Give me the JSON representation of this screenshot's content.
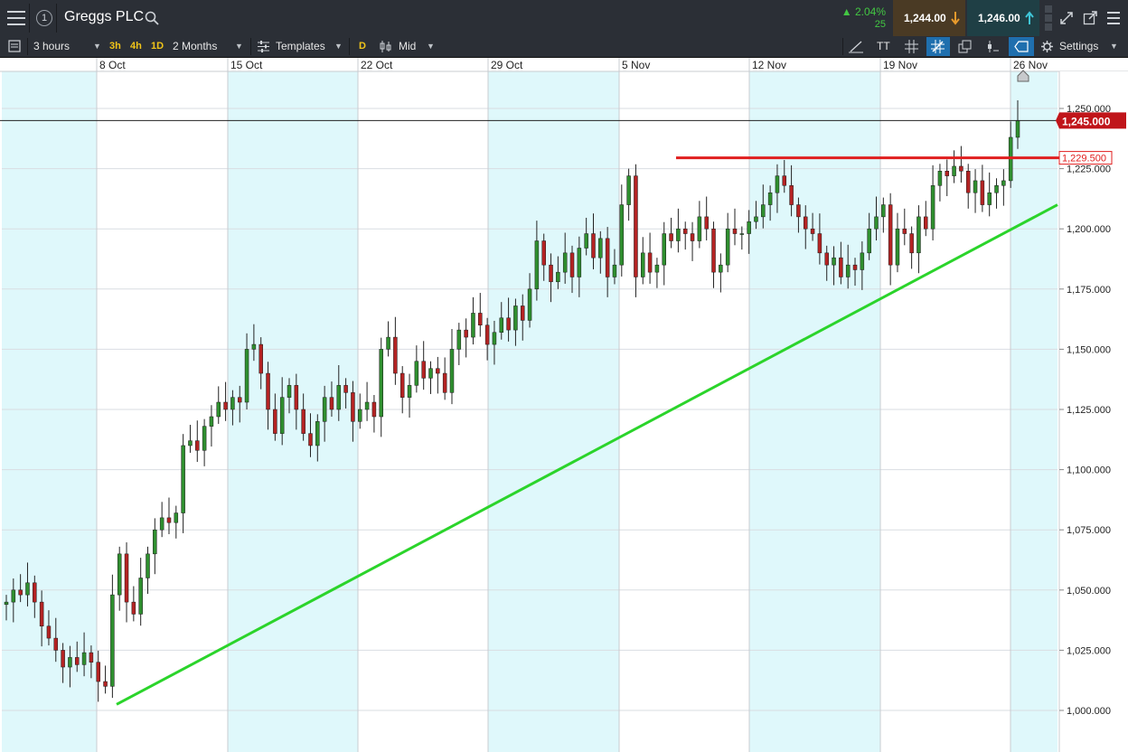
{
  "header": {
    "instrument": "Greggs PLC",
    "badge": "1",
    "change_pct": "▲ 2.04%",
    "change_pts": "25",
    "sell_price": "1,244.00",
    "buy_price": "1,246.00"
  },
  "toolbar": {
    "interval": "3 hours",
    "quick_3h": "3h",
    "quick_4h": "4h",
    "quick_1d": "1D",
    "range": "2 Months",
    "templates": "Templates",
    "d_badge": "D",
    "price_type": "Mid",
    "settings": "Settings",
    "text_tool": "TT"
  },
  "icons": [
    "menu-icon",
    "search-icon",
    "arrow-down-icon",
    "arrow-up-icon",
    "fullscreen-icon",
    "popout-icon",
    "templates-icon",
    "candle-icon",
    "line-tool-icon",
    "grid-icon",
    "crosshair-icon",
    "layers-icon",
    "gear-icon",
    "alert-icon"
  ],
  "colors": {
    "bull": "#2f8f2f",
    "bear": "#b42323",
    "resistance": "#e01e1e",
    "support": "#2bd42b",
    "shade": "#dff8fb",
    "price_tag": "#c0151a"
  },
  "chart_data": {
    "type": "candlestick",
    "x_labels": [
      "8 Oct",
      "15 Oct",
      "22 Oct",
      "29 Oct",
      "5 Nov",
      "12 Nov",
      "19 Nov",
      "26 Nov"
    ],
    "y_ticks": [
      "1,000.000",
      "1,025.000",
      "1,050.000",
      "1,075.000",
      "1,100.000",
      "1,125.000",
      "1,150.000",
      "1,175.000",
      "1,200.000",
      "1,225.000",
      "1,250.000"
    ],
    "ylim": [
      995,
      1262
    ],
    "current_price": 1245.0,
    "current_price_label": "1,245.000",
    "resistance_level": 1229.5,
    "resistance_label": "1,229.500",
    "support_line": {
      "from": [
        0,
        1002.5
      ],
      "to": [
        1,
        1210
      ]
    },
    "closes": [
      1045,
      1050,
      1048,
      1053,
      1045,
      1035,
      1030,
      1025,
      1018,
      1022,
      1019,
      1024,
      1020,
      1012,
      1010,
      1048,
      1065,
      1045,
      1040,
      1055,
      1065,
      1075,
      1080,
      1078,
      1082,
      1110,
      1112,
      1108,
      1118,
      1122,
      1128,
      1125,
      1130,
      1128,
      1150,
      1152,
      1140,
      1125,
      1115,
      1130,
      1135,
      1125,
      1115,
      1110,
      1120,
      1130,
      1125,
      1135,
      1132,
      1120,
      1125,
      1128,
      1122,
      1150,
      1155,
      1140,
      1130,
      1135,
      1145,
      1138,
      1142,
      1140,
      1132,
      1150,
      1158,
      1155,
      1165,
      1160,
      1152,
      1157,
      1163,
      1158,
      1168,
      1162,
      1175,
      1195,
      1185,
      1178,
      1182,
      1190,
      1180,
      1192,
      1198,
      1188,
      1196,
      1180,
      1185,
      1210,
      1222,
      1180,
      1190,
      1182,
      1185,
      1198,
      1195,
      1200,
      1198,
      1195,
      1205,
      1200,
      1182,
      1185,
      1200,
      1198,
      1198,
      1203,
      1205,
      1210,
      1215,
      1222,
      1218,
      1210,
      1205,
      1200,
      1198,
      1190,
      1185,
      1188,
      1180,
      1185,
      1183,
      1190,
      1200,
      1205,
      1210,
      1185,
      1200,
      1198,
      1190,
      1205,
      1200,
      1218,
      1224,
      1222,
      1226,
      1224,
      1215,
      1220,
      1210,
      1215,
      1218,
      1220,
      1238,
      1245
    ]
  }
}
